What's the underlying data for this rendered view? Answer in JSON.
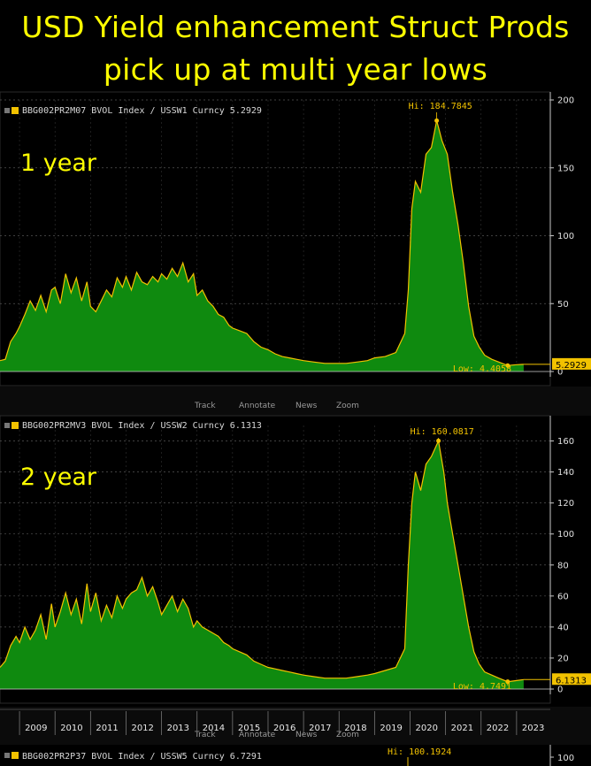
{
  "title_line1": "USD Yield enhancement Struct Prods",
  "title_line2": "pick up at multi year lows",
  "toolbar": [
    "Track",
    "Annotate",
    "News",
    "Zoom"
  ],
  "colors": {
    "area": "#0f8a0f",
    "line": "#f2c200",
    "title": "#ffff00",
    "last": "#f2c200"
  },
  "chart_data": [
    {
      "type": "area",
      "panel_label": "1 year",
      "legend": "BBG002PR2M07 BVOL Index / USSW1 Curncy 5.2929",
      "hi_label": "Hi: 184.7845",
      "low_label": "Low: 4.4058",
      "last_label": "5.2929",
      "last_value": 5.2929,
      "hi": {
        "x": 2020.75,
        "y": 184.7845
      },
      "low": {
        "x": 2022.75,
        "y": 4.4058
      },
      "ylim": [
        0,
        200
      ],
      "yticks": [
        0,
        50,
        100,
        150,
        200
      ],
      "xlim": [
        2008.45,
        2023.95
      ],
      "x": [
        2008.45,
        2008.6,
        2008.75,
        2008.9,
        2009.0,
        2009.15,
        2009.3,
        2009.45,
        2009.6,
        2009.75,
        2009.9,
        2010.0,
        2010.15,
        2010.3,
        2010.45,
        2010.6,
        2010.75,
        2010.9,
        2011.0,
        2011.15,
        2011.3,
        2011.45,
        2011.6,
        2011.75,
        2011.9,
        2012.0,
        2012.15,
        2012.3,
        2012.45,
        2012.6,
        2012.75,
        2012.9,
        2013.0,
        2013.15,
        2013.3,
        2013.45,
        2013.6,
        2013.75,
        2013.9,
        2014.0,
        2014.15,
        2014.3,
        2014.45,
        2014.6,
        2014.75,
        2014.9,
        2015.0,
        2015.2,
        2015.4,
        2015.6,
        2015.8,
        2016.0,
        2016.2,
        2016.4,
        2016.6,
        2016.8,
        2017.0,
        2017.3,
        2017.6,
        2017.9,
        2018.2,
        2018.5,
        2018.8,
        2019.0,
        2019.3,
        2019.6,
        2019.85,
        2019.95,
        2020.05,
        2020.15,
        2020.3,
        2020.45,
        2020.6,
        2020.75,
        2020.9,
        2021.05,
        2021.2,
        2021.35,
        2021.5,
        2021.65,
        2021.8,
        2021.95,
        2022.1,
        2022.3,
        2022.5,
        2022.75,
        2023.0,
        2023.2
      ],
      "values": [
        8,
        9,
        22,
        28,
        33,
        42,
        52,
        45,
        56,
        44,
        60,
        62,
        50,
        72,
        58,
        69,
        52,
        66,
        48,
        44,
        52,
        60,
        55,
        69,
        62,
        70,
        60,
        73,
        66,
        64,
        70,
        66,
        72,
        68,
        76,
        70,
        80,
        66,
        72,
        56,
        60,
        52,
        48,
        42,
        40,
        34,
        32,
        30,
        28,
        22,
        18,
        16,
        13,
        11,
        10,
        9,
        8,
        7,
        6,
        6,
        6,
        7,
        8,
        10,
        11,
        14,
        28,
        60,
        120,
        140,
        132,
        160,
        165,
        184.8,
        170,
        160,
        132,
        108,
        80,
        48,
        26,
        18,
        12,
        9,
        7,
        4.4,
        5,
        5.3
      ]
    },
    {
      "type": "area",
      "panel_label": "2 year",
      "legend": "BBG002PR2MV3 BVOL Index / USSW2 Curncy 6.1313",
      "hi_label": "Hi: 160.0817",
      "low_label": "Low: 4.7491",
      "last_label": "6.1313",
      "last_value": 6.1313,
      "hi": {
        "x": 2020.8,
        "y": 160.0817
      },
      "low": {
        "x": 2022.75,
        "y": 4.7491
      },
      "ylim": [
        0,
        170
      ],
      "yticks": [
        0,
        20,
        40,
        60,
        80,
        100,
        120,
        140,
        160
      ],
      "xlim": [
        2008.45,
        2023.95
      ],
      "x_tick_labels": [
        "2009",
        "2010",
        "2011",
        "2012",
        "2013",
        "2014",
        "2015",
        "2016",
        "2017",
        "2018",
        "2019",
        "2020",
        "2021",
        "2022",
        "2023"
      ],
      "x": [
        2008.45,
        2008.6,
        2008.75,
        2008.9,
        2009.0,
        2009.15,
        2009.3,
        2009.45,
        2009.6,
        2009.75,
        2009.9,
        2010.0,
        2010.15,
        2010.3,
        2010.45,
        2010.6,
        2010.75,
        2010.9,
        2011.0,
        2011.15,
        2011.3,
        2011.45,
        2011.6,
        2011.75,
        2011.9,
        2012.0,
        2012.15,
        2012.3,
        2012.45,
        2012.6,
        2012.75,
        2012.9,
        2013.0,
        2013.15,
        2013.3,
        2013.45,
        2013.6,
        2013.75,
        2013.9,
        2014.0,
        2014.15,
        2014.3,
        2014.45,
        2014.6,
        2014.75,
        2014.9,
        2015.0,
        2015.2,
        2015.4,
        2015.6,
        2015.8,
        2016.0,
        2016.2,
        2016.4,
        2016.6,
        2016.8,
        2017.0,
        2017.3,
        2017.6,
        2017.9,
        2018.2,
        2018.5,
        2018.8,
        2019.0,
        2019.3,
        2019.6,
        2019.85,
        2019.95,
        2020.05,
        2020.15,
        2020.3,
        2020.45,
        2020.6,
        2020.8,
        2020.95,
        2021.05,
        2021.2,
        2021.35,
        2021.5,
        2021.65,
        2021.8,
        2021.95,
        2022.1,
        2022.3,
        2022.5,
        2022.75,
        2023.0,
        2023.2
      ],
      "values": [
        14,
        18,
        28,
        34,
        30,
        40,
        32,
        38,
        48,
        32,
        55,
        40,
        50,
        62,
        48,
        58,
        42,
        68,
        50,
        62,
        44,
        54,
        46,
        60,
        52,
        58,
        62,
        64,
        72,
        60,
        66,
        56,
        48,
        54,
        60,
        50,
        58,
        52,
        40,
        44,
        40,
        38,
        36,
        34,
        30,
        28,
        26,
        24,
        22,
        18,
        16,
        14,
        13,
        12,
        11,
        10,
        9,
        8,
        7,
        7,
        7,
        8,
        9,
        10,
        12,
        14,
        26,
        80,
        120,
        140,
        128,
        145,
        150,
        160.1,
        140,
        120,
        100,
        80,
        60,
        40,
        24,
        16,
        11,
        9,
        7,
        4.75,
        5.5,
        6.1
      ]
    },
    {
      "type": "area",
      "legend": "BBG002PR2P37 BVOL Index / USSW5 Curncy 6.7291",
      "hi_label": "Hi: 100.1924",
      "hi": {
        "y": 100.1924
      },
      "yticks": [
        100
      ]
    }
  ]
}
